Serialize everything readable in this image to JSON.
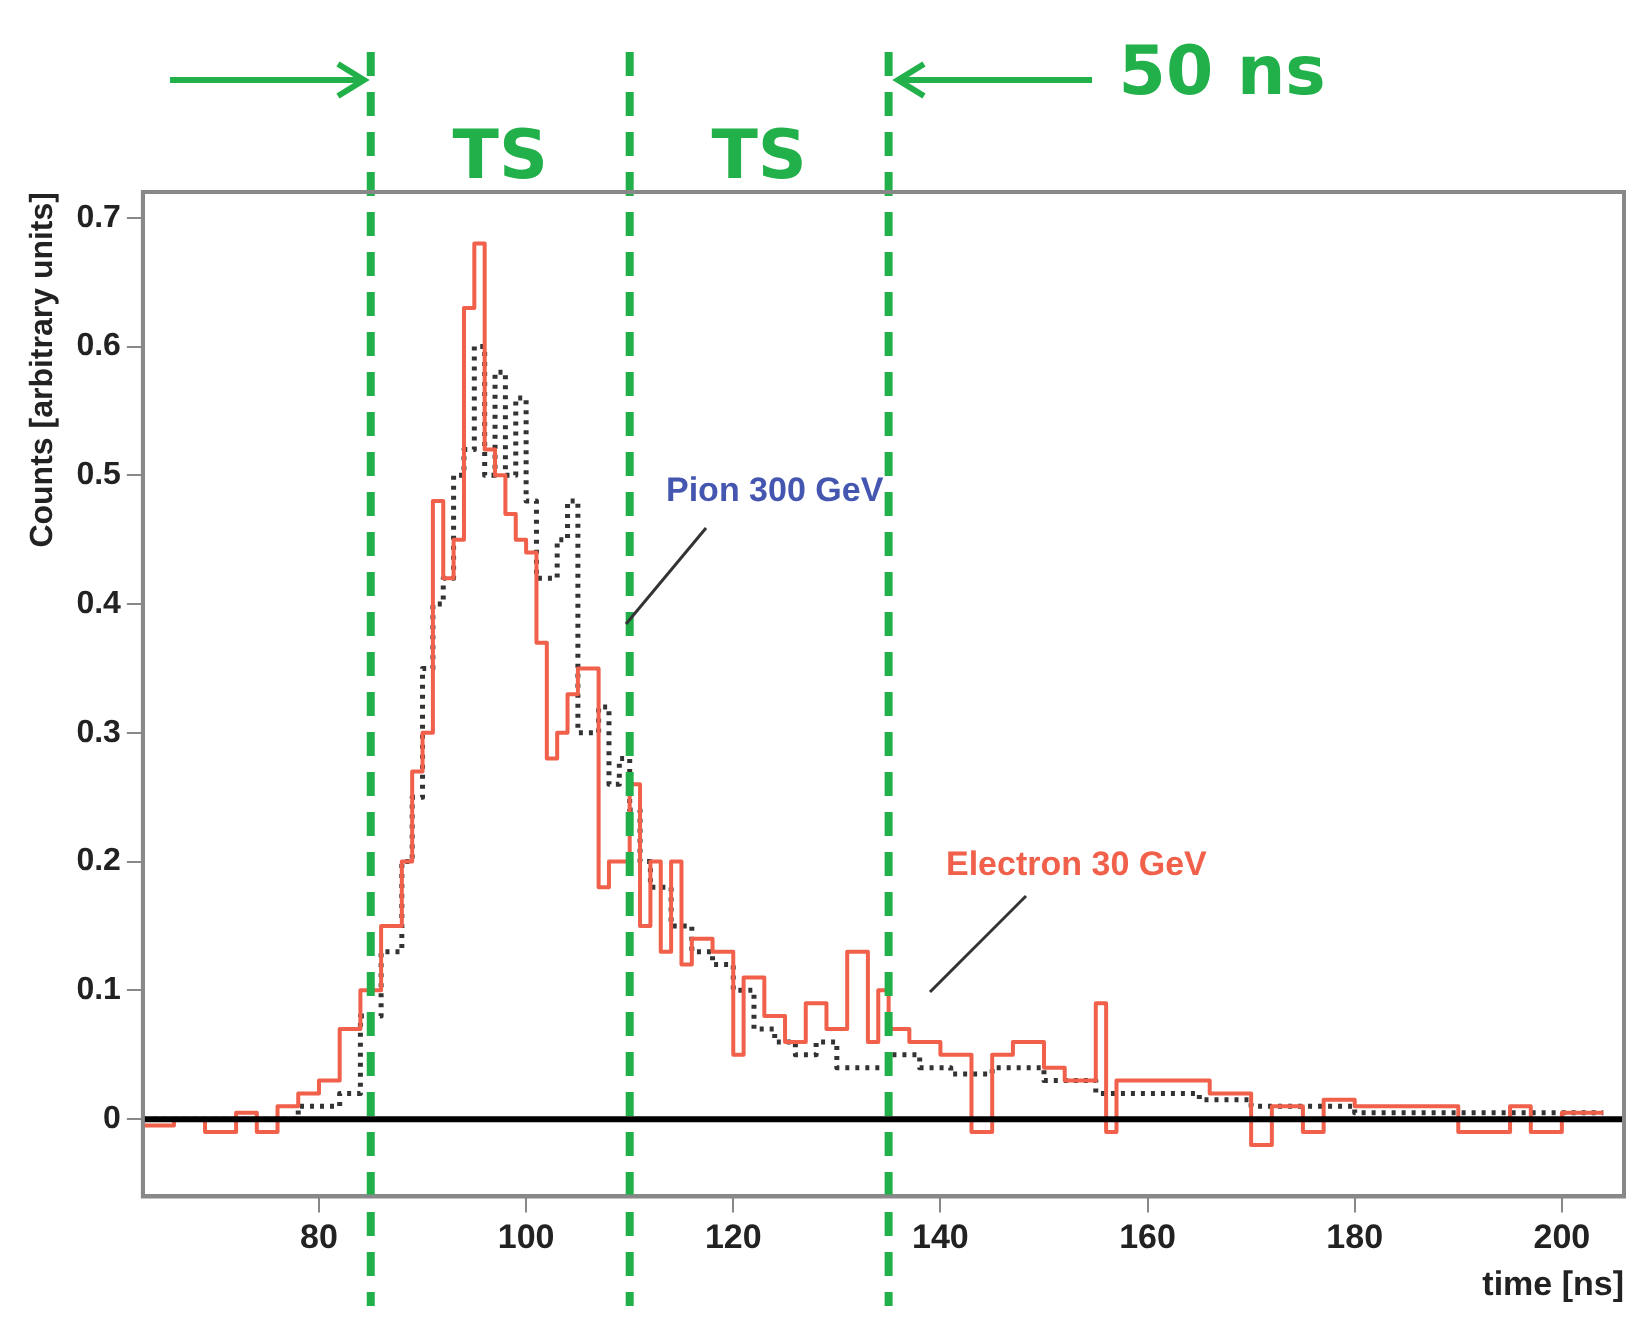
{
  "chart_data": {
    "type": "step",
    "xlabel": "time [ns]",
    "ylabel": "Counts [arbitrary units]",
    "xlim": [
      63,
      206
    ],
    "xticks": [
      80,
      100,
      120,
      140,
      160,
      180,
      200
    ],
    "ylim": [
      -0.06,
      0.72
    ],
    "yticks": [
      0,
      0.1,
      0.2,
      0.3,
      0.4,
      0.5,
      0.6,
      0.7
    ],
    "grid": false,
    "legend": false,
    "annotations": [
      "TS",
      "TS",
      "50 ns"
    ],
    "ref_lines": [
      {
        "axis": "y",
        "value": 0,
        "color": "#000000",
        "line_style": "solid"
      },
      {
        "axis": "x",
        "value": 85,
        "color": "#22b04a",
        "line_style": "dashed"
      },
      {
        "axis": "x",
        "value": 110,
        "color": "#22b04a",
        "line_style": "dashed"
      },
      {
        "axis": "x",
        "value": 135,
        "color": "#22b04a",
        "line_style": "dashed"
      }
    ],
    "series": [
      {
        "name": "Electron 30 GeV",
        "color": "#f0604a",
        "line_style": "solid",
        "x": [
          63,
          66,
          69,
          72,
          74,
          76,
          78,
          80,
          82,
          84,
          86,
          88,
          89,
          90,
          91,
          92,
          93,
          94,
          95,
          96,
          97,
          98,
          99,
          100,
          101,
          102,
          103,
          104,
          105,
          107,
          108,
          110,
          111,
          112,
          113,
          114,
          115,
          116,
          118,
          120,
          121,
          123,
          125,
          127,
          129,
          131,
          133,
          134,
          135,
          137,
          140,
          143,
          145,
          147,
          150,
          152,
          155,
          156,
          157,
          160,
          163,
          166,
          170,
          172,
          175,
          177,
          180,
          185,
          190,
          195,
          197,
          200,
          204
        ],
        "values": [
          0,
          -0.005,
          0,
          -0.01,
          0.005,
          -0.01,
          0.01,
          0.02,
          0.03,
          0.07,
          0.1,
          0.15,
          0.2,
          0.27,
          0.3,
          0.48,
          0.42,
          0.45,
          0.63,
          0.68,
          0.52,
          0.5,
          0.47,
          0.45,
          0.44,
          0.37,
          0.28,
          0.3,
          0.33,
          0.35,
          0.18,
          0.2,
          0.26,
          0.15,
          0.2,
          0.13,
          0.2,
          0.12,
          0.14,
          0.13,
          0.05,
          0.11,
          0.08,
          0.06,
          0.09,
          0.07,
          0.13,
          0.06,
          0.1,
          0.07,
          0.06,
          0.05,
          -0.01,
          0.05,
          0.06,
          0.04,
          0.03,
          0.09,
          -0.01,
          0.03,
          0.03,
          0.03,
          0.02,
          -0.02,
          0.01,
          -0.01,
          0.015,
          0.01,
          0.01,
          -0.01,
          0.01,
          -0.01,
          0.005
        ]
      },
      {
        "name": "Pion 300 GeV",
        "color": "#333333",
        "line_style": "dotted",
        "x": [
          63,
          70,
          78,
          82,
          84,
          86,
          88,
          89,
          90,
          91,
          92,
          93,
          94,
          95,
          96,
          97,
          98,
          99,
          100,
          101,
          103,
          104,
          105,
          107,
          108,
          109,
          110,
          111,
          112,
          114,
          116,
          118,
          120,
          122,
          124,
          126,
          128,
          130,
          132,
          135,
          138,
          141,
          145,
          150,
          155,
          160,
          165,
          170,
          175,
          180,
          190,
          200,
          204
        ],
        "values": [
          0,
          0,
          0,
          0.01,
          0.02,
          0.08,
          0.13,
          0.2,
          0.25,
          0.35,
          0.4,
          0.42,
          0.5,
          0.52,
          0.6,
          0.5,
          0.58,
          0.5,
          0.56,
          0.48,
          0.42,
          0.45,
          0.48,
          0.3,
          0.32,
          0.26,
          0.28,
          0.24,
          0.2,
          0.18,
          0.15,
          0.13,
          0.12,
          0.1,
          0.07,
          0.06,
          0.05,
          0.06,
          0.04,
          0.04,
          0.05,
          0.04,
          0.035,
          0.04,
          0.03,
          0.02,
          0.02,
          0.015,
          0.01,
          0.01,
          0.005,
          0.005,
          0.005
        ]
      }
    ]
  }
}
